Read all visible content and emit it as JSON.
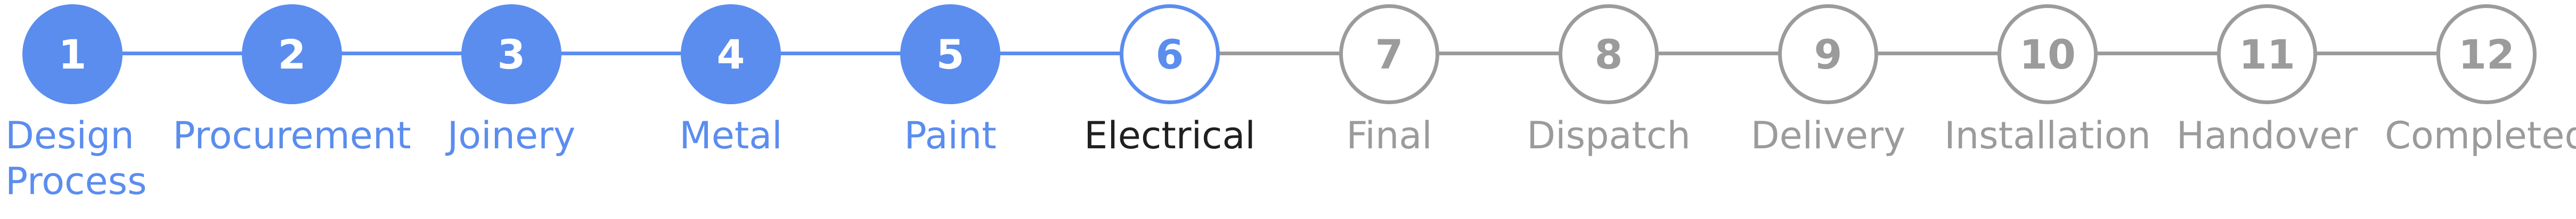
{
  "stepper": {
    "colors": {
      "done": "#5b8def",
      "current_text": "#202020",
      "upcoming": "#9b9b9b"
    },
    "steps": [
      {
        "number": "1",
        "label": "Design Process",
        "state": "done"
      },
      {
        "number": "2",
        "label": "Procurement",
        "state": "done"
      },
      {
        "number": "3",
        "label": "Joinery",
        "state": "done"
      },
      {
        "number": "4",
        "label": "Metal",
        "state": "done"
      },
      {
        "number": "5",
        "label": "Paint",
        "state": "done"
      },
      {
        "number": "6",
        "label": "Electrical",
        "state": "current"
      },
      {
        "number": "7",
        "label": "Final",
        "state": "upcoming"
      },
      {
        "number": "8",
        "label": "Dispatch",
        "state": "upcoming"
      },
      {
        "number": "9",
        "label": "Delivery",
        "state": "upcoming"
      },
      {
        "number": "10",
        "label": "Installation",
        "state": "upcoming"
      },
      {
        "number": "11",
        "label": "Handover",
        "state": "upcoming"
      },
      {
        "number": "12",
        "label": "Completed",
        "state": "upcoming"
      }
    ]
  }
}
